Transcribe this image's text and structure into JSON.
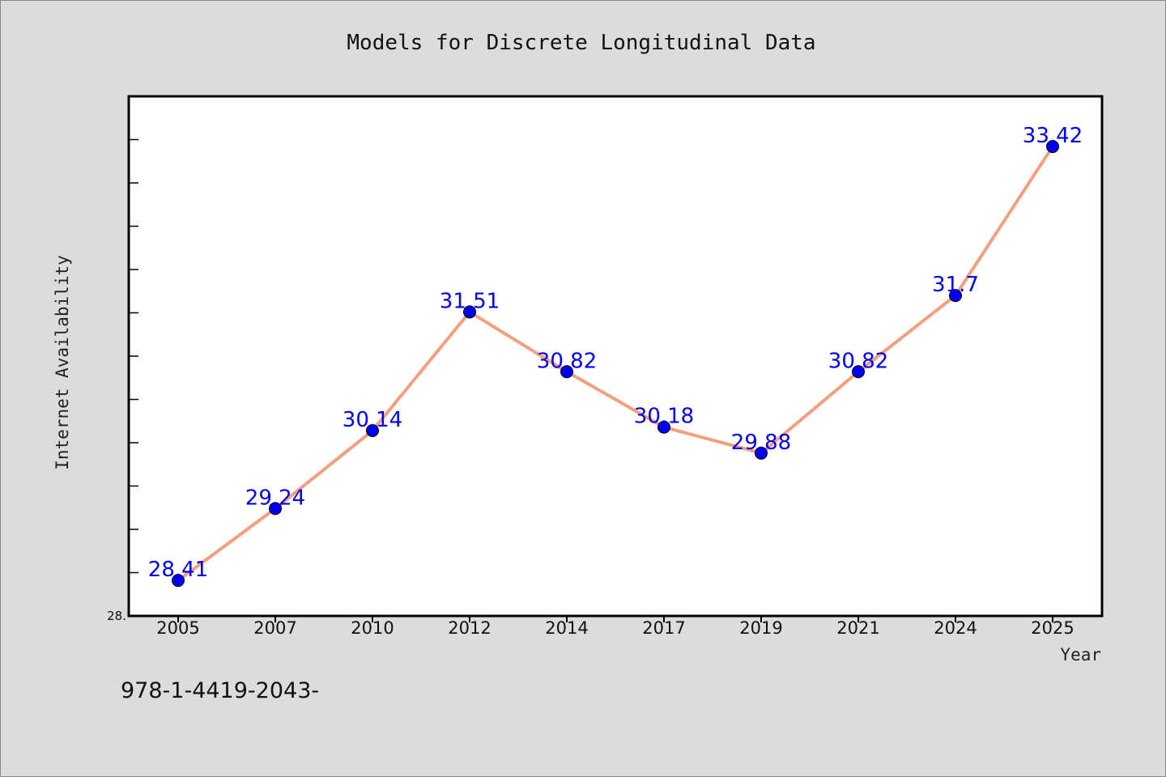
{
  "chart_data": {
    "type": "line",
    "title": "Models for Discrete Longitudinal Data",
    "xlabel": "Year",
    "ylabel": "Internet Availability",
    "categories": [
      "2005",
      "2007",
      "2010",
      "2012",
      "2014",
      "2017",
      "2019",
      "2021",
      "2024",
      "2025"
    ],
    "series": [
      {
        "values": [
          28.41,
          29.24,
          30.14,
          31.51,
          30.82,
          30.18,
          29.88,
          30.82,
          31.7,
          33.42
        ],
        "data_labels": [
          "28.41",
          "29.24",
          "30.14",
          "31.51",
          "30.82",
          "30.18",
          "29.88",
          "30.82",
          "31.7",
          "33.42"
        ]
      }
    ],
    "ylim": [
      28.0,
      34.0
    ],
    "y_tick_label": "28.",
    "line_color": "#f4a07f",
    "marker_color": "#0000ee",
    "grid": false
  },
  "footnote": "978-1-4419-2043-"
}
